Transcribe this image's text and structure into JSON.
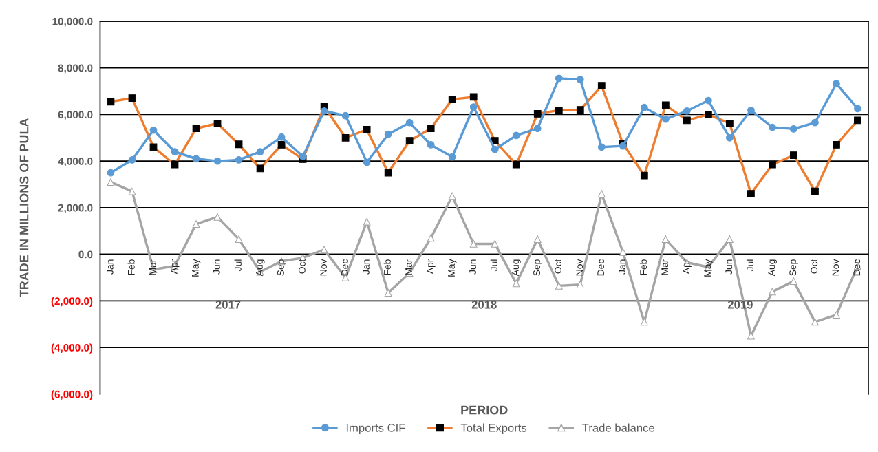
{
  "chart_data": {
    "type": "line",
    "xlabel": "PERIOD",
    "ylabel": "TRADE IN MILLIONS OF PULA",
    "categories": [
      "Jan",
      "Feb",
      "Mar",
      "Apr",
      "May",
      "Jun",
      "Jul",
      "Aug",
      "Sep",
      "Oct",
      "Nov",
      "Dec",
      "Jan",
      "Feb",
      "Mar",
      "Apr",
      "May",
      "Jun",
      "Jul",
      "Aug",
      "Sep",
      "Oct",
      "Nov",
      "Dec",
      "Jan",
      "Feb",
      "Mar",
      "Apr",
      "May",
      "Jun",
      "Jul",
      "Aug",
      "Sep",
      "Oct",
      "Nov",
      "Dec"
    ],
    "series": [
      {
        "name": "Imports CIF",
        "color": "#5b9bd5",
        "marker": "circle",
        "values": [
          3500,
          4050,
          5330,
          4400,
          4100,
          4000,
          4050,
          4400,
          5030,
          4200,
          6150,
          5950,
          3950,
          5150,
          5650,
          4700,
          4180,
          6320,
          4500,
          5100,
          5400,
          7550,
          7500,
          4600,
          4650,
          6300,
          5800,
          6150,
          6600,
          5000,
          6180,
          5450,
          5380,
          5650,
          7320,
          6250
        ]
      },
      {
        "name": "Total Exports",
        "color": "#ed7d31",
        "marker": "square",
        "values": [
          6550,
          6700,
          4600,
          3850,
          5400,
          5620,
          4720,
          3680,
          4700,
          4080,
          6350,
          5000,
          5350,
          3500,
          4870,
          5400,
          6650,
          6750,
          4870,
          3850,
          6030,
          6180,
          6200,
          7230,
          4750,
          3380,
          6400,
          5750,
          6000,
          5620,
          2600,
          3850,
          4250,
          2700,
          4700,
          5750
        ]
      },
      {
        "name": "Trade balance",
        "color": "#a5a5a5",
        "marker": "triangle",
        "values": [
          3100,
          2700,
          -650,
          -500,
          1300,
          1600,
          650,
          -750,
          -300,
          -150,
          200,
          -1000,
          1400,
          -1650,
          -800,
          700,
          2500,
          450,
          450,
          -1250,
          650,
          -1350,
          -1300,
          2600,
          100,
          -2900,
          650,
          -350,
          -550,
          650,
          -3500,
          -1600,
          -1150,
          -2900,
          -2600,
          -500
        ]
      }
    ],
    "ylim": [
      -6000,
      10000
    ],
    "yticks": [
      {
        "value": -6000,
        "label": "(6,000.0)"
      },
      {
        "value": -4000,
        "label": "(4,000.0)"
      },
      {
        "value": -2000,
        "label": "(2,000.0)"
      },
      {
        "value": 0,
        "label": "0.0"
      },
      {
        "value": 2000,
        "label": "2,000.0"
      },
      {
        "value": 4000,
        "label": "4,000.0"
      },
      {
        "value": 6000,
        "label": "6,000.0"
      },
      {
        "value": 8000,
        "label": "8,000.0"
      },
      {
        "value": 10000,
        "label": "10,000.0"
      }
    ],
    "annotations": [
      "2017",
      "2018",
      "2019"
    ],
    "grid": "y",
    "legend": "bottom",
    "line_style": "solid"
  }
}
